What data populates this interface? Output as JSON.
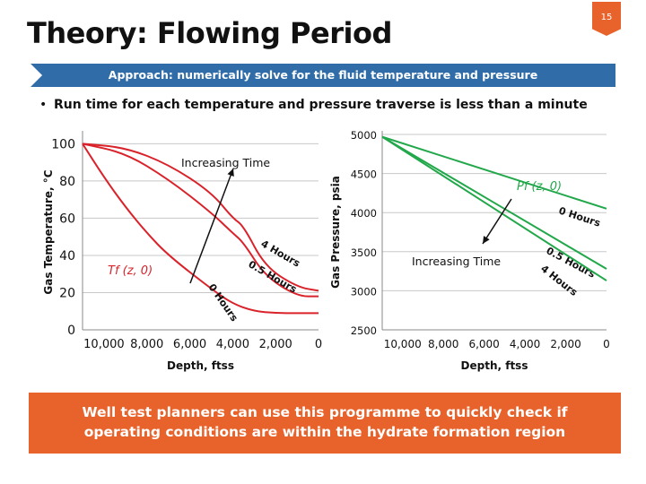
{
  "slide": {
    "title": "Theory: Flowing Period",
    "page_number": "15",
    "approach": "Approach: numerically solve for the fluid temperature and pressure",
    "bullet_marker": "•",
    "bullet": "Run time for each temperature and pressure traverse is less than a minute",
    "footer": "Well test planners can use this programme to quickly check if operating conditions are within the hydrate formation region"
  },
  "colors": {
    "title_bar": "#2f6ca8",
    "accent": "#e8632b",
    "temp_series": "#d9222a",
    "pressure_series": "#22a84a"
  },
  "chart_data": [
    {
      "type": "line",
      "ylabel": "Gas Temperature, °C",
      "xlabel": "Depth, ftss",
      "x_ticks": [
        "10,000",
        "8,000",
        "6,000",
        "4,000",
        "2,000",
        "0"
      ],
      "y_ticks": [
        "0",
        "20",
        "40",
        "60",
        "80",
        "100"
      ],
      "xlim": [
        11000,
        0
      ],
      "ylim": [
        0,
        105
      ],
      "annotation": "Increasing Time",
      "formula": "Tf (z, 0)",
      "series": [
        {
          "name": "4 Hours",
          "x": [
            11000,
            9000,
            7000,
            5000,
            4000,
            3500,
            2500,
            1000,
            0
          ],
          "y": [
            100,
            98,
            89,
            74,
            60,
            56,
            34,
            23,
            21
          ]
        },
        {
          "name": "0.5 Hours",
          "x": [
            11000,
            9000,
            7000,
            5000,
            4000,
            3500,
            2500,
            1000,
            0
          ],
          "y": [
            100,
            95,
            81,
            63,
            52,
            47,
            29,
            18,
            18
          ]
        },
        {
          "name": "0 Hours",
          "x": [
            11000,
            10000,
            9000,
            8000,
            7000,
            5000,
            4000,
            3000,
            2000,
            1000,
            0
          ],
          "y": [
            100,
            82,
            66,
            52,
            40,
            22,
            14,
            10,
            9,
            9,
            9
          ]
        }
      ]
    },
    {
      "type": "line",
      "ylabel": "Gas Pressure, psia",
      "xlabel": "Depth, ftss",
      "x_ticks": [
        "10,000",
        "8,000",
        "6,000",
        "4,000",
        "2,000",
        "0"
      ],
      "y_ticks": [
        "2500",
        "3000",
        "3500",
        "4000",
        "4500",
        "5000"
      ],
      "xlim": [
        11000,
        0
      ],
      "ylim": [
        2500,
        5000
      ],
      "annotation": "Increasing Time",
      "formula": "Pf (z, 0)",
      "series": [
        {
          "name": "0 Hours",
          "x": [
            11000,
            0
          ],
          "y": [
            4970,
            4050
          ]
        },
        {
          "name": "0.5 Hours",
          "x": [
            11000,
            0
          ],
          "y": [
            4970,
            3280
          ]
        },
        {
          "name": "4 Hours",
          "x": [
            11000,
            0
          ],
          "y": [
            4970,
            3130
          ]
        }
      ]
    }
  ]
}
